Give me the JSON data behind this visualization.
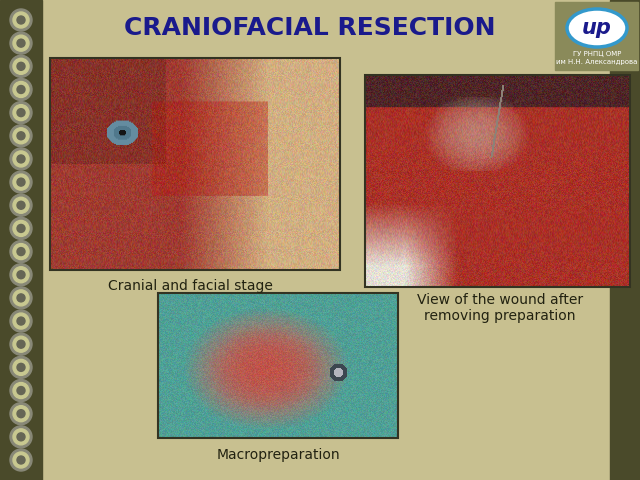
{
  "title": "CRANIOFACIAL RESECTION",
  "title_color": "#1a1a8c",
  "title_fontsize": 18,
  "bg_color": "#c8c090",
  "spiral_bg": "#4a4a2a",
  "label1": "Cranial and facial stage",
  "label2": "View of the wound after\nremoving preparation",
  "label3": "Macropreparation",
  "label_fontsize": 10,
  "logo_text1": "ГУ РНПЦ ОМР",
  "logo_text2": "им Н.Н. Александрова"
}
